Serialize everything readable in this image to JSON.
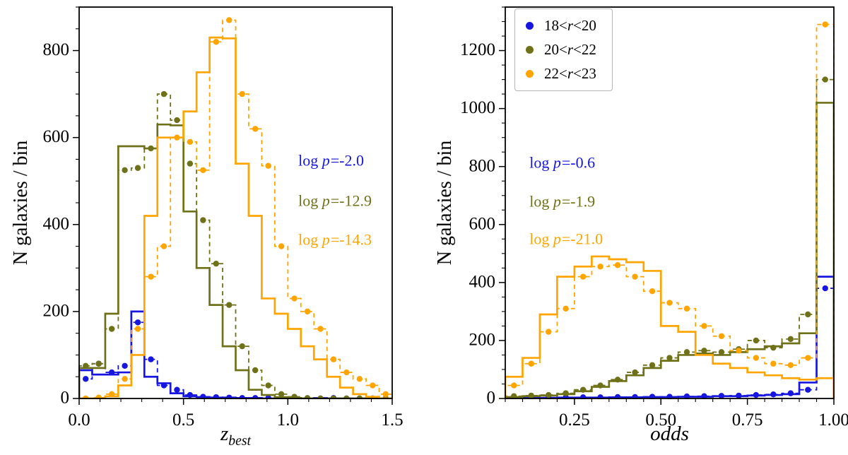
{
  "figure": {
    "background": "#ffffff"
  },
  "colors": {
    "blue": "#1616e0",
    "olive": "#6e7118",
    "orange": "#ffa502",
    "axis": "#000000"
  },
  "legend": {
    "position": "top-left",
    "items": [
      {
        "pre": "18<",
        "var": "r",
        "post": "<20",
        "color": "#1616e0"
      },
      {
        "pre": "20<",
        "var": "r",
        "post": "<22",
        "color": "#6e7118"
      },
      {
        "pre": "22<",
        "var": "r",
        "post": "<23",
        "color": "#ffa502"
      }
    ]
  },
  "chart_data": [
    {
      "type": "step-histogram",
      "panel": "left",
      "title": "",
      "ylabel": "N galaxies / bin",
      "xlabel": {
        "main": "z",
        "sub": "best"
      },
      "xlim": [
        0,
        1.5
      ],
      "ylim": [
        0,
        900
      ],
      "xticks": [
        0.0,
        0.5,
        1.0,
        1.5
      ],
      "xtick_labels": [
        "0.0",
        "0.5",
        "1.0",
        "1.5"
      ],
      "yticks": [
        0,
        200,
        400,
        600,
        800
      ],
      "ytick_labels": [
        "0",
        "200",
        "400",
        "600",
        "800"
      ],
      "x_minor_step": 0.1,
      "y_minor_step": 50,
      "grid": false,
      "bin_edges": [
        0,
        0.0625,
        0.125,
        0.1875,
        0.25,
        0.3125,
        0.375,
        0.4375,
        0.5,
        0.5625,
        0.625,
        0.6875,
        0.75,
        0.8125,
        0.875,
        0.9375,
        1.0,
        1.0625,
        1.125,
        1.1875,
        1.25,
        1.3125,
        1.375,
        1.4375,
        1.5
      ],
      "series": [
        {
          "name": "18<r<20 solid",
          "color": "#1616e0",
          "style": "solid",
          "markers": false,
          "values": [
            65,
            55,
            55,
            60,
            200,
            50,
            35,
            12,
            5,
            3,
            2,
            2,
            1,
            1,
            0,
            1,
            0,
            0,
            1,
            0,
            0,
            0,
            0,
            0
          ]
        },
        {
          "name": "18<r<20 dashed",
          "color": "#1616e0",
          "style": "dashed",
          "markers": true,
          "values": [
            45,
            80,
            60,
            75,
            175,
            90,
            30,
            20,
            8,
            4,
            3,
            2,
            1,
            1,
            1,
            0,
            1,
            0,
            0,
            1,
            0,
            0,
            0,
            0
          ]
        },
        {
          "name": "20<r<22 solid",
          "color": "#6e7118",
          "style": "solid",
          "markers": false,
          "values": [
            70,
            70,
            195,
            580,
            580,
            575,
            630,
            628,
            430,
            300,
            215,
            120,
            65,
            20,
            8,
            3,
            1,
            0,
            0,
            0,
            0,
            0,
            0,
            0
          ]
        },
        {
          "name": "20<r<22 dashed",
          "color": "#6e7118",
          "style": "dashed",
          "markers": true,
          "values": [
            75,
            80,
            160,
            525,
            530,
            575,
            700,
            640,
            540,
            410,
            310,
            215,
            120,
            65,
            30,
            10,
            4,
            1,
            0,
            0,
            0,
            0,
            0,
            0
          ]
        },
        {
          "name": "22<r<23 solid",
          "color": "#ffa502",
          "style": "solid",
          "markers": false,
          "values": [
            0,
            0,
            5,
            30,
            100,
            420,
            600,
            600,
            660,
            750,
            830,
            828,
            540,
            420,
            230,
            195,
            160,
            120,
            90,
            50,
            25,
            10,
            4,
            0
          ]
        },
        {
          "name": "22<r<23 dashed",
          "color": "#ffa502",
          "style": "dashed",
          "markers": true,
          "values": [
            0,
            2,
            10,
            45,
            160,
            280,
            350,
            600,
            590,
            525,
            820,
            870,
            700,
            620,
            535,
            350,
            230,
            200,
            160,
            90,
            60,
            45,
            30,
            10
          ]
        }
      ],
      "annotations": [
        {
          "pre": "log ",
          "var": "p",
          "post": "=-2.0",
          "color": "#1616e0",
          "x": 1.05,
          "y": 545
        },
        {
          "pre": "log ",
          "var": "p",
          "post": "=-12.9",
          "color": "#6e7118",
          "x": 1.05,
          "y": 452
        },
        {
          "pre": "log ",
          "var": "p",
          "post": "=-14.3",
          "color": "#ffa502",
          "x": 1.05,
          "y": 362
        }
      ]
    },
    {
      "type": "step-histogram",
      "panel": "right",
      "title": "",
      "ylabel": "N galaxies / bin",
      "xlabel": {
        "main": "odds",
        "sub": ""
      },
      "xlim": [
        0.05,
        1.0
      ],
      "ylim": [
        0,
        1350
      ],
      "xticks": [
        0.25,
        0.5,
        0.75,
        1.0
      ],
      "xtick_labels": [
        "0.25",
        "0.50",
        "0.75",
        "1.00"
      ],
      "yticks": [
        0,
        200,
        400,
        600,
        800,
        1000,
        1200
      ],
      "ytick_labels": [
        "0",
        "200",
        "400",
        "600",
        "800",
        "1000",
        "1200"
      ],
      "x_minor_step": 0.05,
      "y_minor_step": 50,
      "grid": false,
      "bin_edges": [
        0.05,
        0.1,
        0.15,
        0.2,
        0.25,
        0.3,
        0.35,
        0.4,
        0.45,
        0.5,
        0.55,
        0.6,
        0.65,
        0.7,
        0.75,
        0.8,
        0.85,
        0.9,
        0.95,
        1.0
      ],
      "series": [
        {
          "name": "18<r<20 solid",
          "color": "#1616e0",
          "style": "solid",
          "markers": false,
          "values": [
            2,
            2,
            2,
            3,
            3,
            3,
            4,
            4,
            5,
            5,
            6,
            6,
            8,
            8,
            10,
            12,
            15,
            55,
            420
          ]
        },
        {
          "name": "18<r<20 dashed",
          "color": "#1616e0",
          "style": "dashed",
          "markers": true,
          "values": [
            3,
            3,
            3,
            4,
            4,
            4,
            5,
            5,
            6,
            6,
            7,
            8,
            9,
            10,
            12,
            14,
            18,
            30,
            380
          ]
        },
        {
          "name": "20<r<22 solid",
          "color": "#6e7118",
          "style": "solid",
          "markers": false,
          "values": [
            5,
            8,
            10,
            15,
            25,
            40,
            60,
            80,
            105,
            130,
            150,
            155,
            150,
            160,
            170,
            180,
            190,
            225,
            1020
          ]
        },
        {
          "name": "20<r<22 dashed",
          "color": "#6e7118",
          "style": "dashed",
          "markers": true,
          "values": [
            8,
            10,
            12,
            18,
            30,
            45,
            65,
            90,
            115,
            140,
            160,
            165,
            160,
            170,
            200,
            175,
            205,
            290,
            1100
          ]
        },
        {
          "name": "22<r<23 solid",
          "color": "#ffa502",
          "style": "solid",
          "markers": false,
          "values": [
            75,
            140,
            290,
            420,
            455,
            490,
            480,
            470,
            440,
            250,
            230,
            150,
            120,
            105,
            90,
            80,
            70,
            65,
            70
          ]
        },
        {
          "name": "22<r<23 dashed",
          "color": "#ffa502",
          "style": "dashed",
          "markers": true,
          "values": [
            45,
            120,
            230,
            310,
            420,
            455,
            460,
            420,
            370,
            330,
            310,
            250,
            215,
            165,
            140,
            120,
            115,
            140,
            1290
          ]
        }
      ],
      "annotations": [
        {
          "pre": "log ",
          "var": "p",
          "post": "=-0.6",
          "color": "#1616e0",
          "x": 0.12,
          "y": 810
        },
        {
          "pre": "log ",
          "var": "p",
          "post": "=-1.9",
          "color": "#6e7118",
          "x": 0.12,
          "y": 675
        },
        {
          "pre": "log ",
          "var": "p",
          "post": "=-21.0",
          "color": "#ffa502",
          "x": 0.12,
          "y": 545
        }
      ]
    }
  ]
}
